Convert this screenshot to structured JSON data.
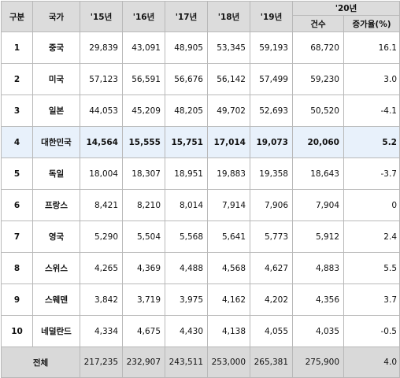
{
  "header": {
    "rank": "구분",
    "country": "국가",
    "years": [
      "'15년",
      "'16년",
      "'17년",
      "'18년",
      "'19년"
    ],
    "year2020": "'20년",
    "count": "건수",
    "growth": "증가율(%)"
  },
  "rows": [
    {
      "rank": "1",
      "country": "중국",
      "v15": "29,839",
      "v16": "43,091",
      "v17": "48,905",
      "v18": "53,345",
      "v19": "59,193",
      "v20": "68,720",
      "growth": "16.1"
    },
    {
      "rank": "2",
      "country": "미국",
      "v15": "57,123",
      "v16": "56,591",
      "v17": "56,676",
      "v18": "56,142",
      "v19": "57,499",
      "v20": "59,230",
      "growth": "3.0"
    },
    {
      "rank": "3",
      "country": "일본",
      "v15": "44,053",
      "v16": "45,209",
      "v17": "48,205",
      "v18": "49,702",
      "v19": "52,693",
      "v20": "50,520",
      "growth": "-4.1"
    },
    {
      "rank": "4",
      "country": "대한민국",
      "v15": "14,564",
      "v16": "15,555",
      "v17": "15,751",
      "v18": "17,014",
      "v19": "19,073",
      "v20": "20,060",
      "growth": "5.2"
    },
    {
      "rank": "5",
      "country": "독일",
      "v15": "18,004",
      "v16": "18,307",
      "v17": "18,951",
      "v18": "19,883",
      "v19": "19,358",
      "v20": "18,643",
      "growth": "-3.7"
    },
    {
      "rank": "6",
      "country": "프랑스",
      "v15": "8,421",
      "v16": "8,210",
      "v17": "8,014",
      "v18": "7,914",
      "v19": "7,906",
      "v20": "7,904",
      "growth": "0"
    },
    {
      "rank": "7",
      "country": "영국",
      "v15": "5,290",
      "v16": "5,504",
      "v17": "5,568",
      "v18": "5,641",
      "v19": "5,773",
      "v20": "5,912",
      "growth": "2.4"
    },
    {
      "rank": "8",
      "country": "스위스",
      "v15": "4,265",
      "v16": "4,369",
      "v17": "4,488",
      "v18": "4,568",
      "v19": "4,627",
      "v20": "4,883",
      "growth": "5.5"
    },
    {
      "rank": "9",
      "country": "스웨덴",
      "v15": "3,842",
      "v16": "3,719",
      "v17": "3,975",
      "v18": "4,162",
      "v19": "4,202",
      "v20": "4,356",
      "growth": "3.7"
    },
    {
      "rank": "10",
      "country": "네덜란드",
      "v15": "4,334",
      "v16": "4,675",
      "v17": "4,430",
      "v18": "4,138",
      "v19": "4,055",
      "v20": "4,035",
      "growth": "-0.5"
    }
  ],
  "total": {
    "label": "전체",
    "v15": "217,235",
    "v16": "232,907",
    "v17": "243,511",
    "v18": "253,000",
    "v19": "265,381",
    "v20": "275,900",
    "growth": "4.0"
  },
  "colors": {
    "header_bg": "#dcdcdc",
    "highlight_bg": "#e8f1fb",
    "total_bg": "#d9d9d9",
    "border": "#b8b8b8"
  }
}
